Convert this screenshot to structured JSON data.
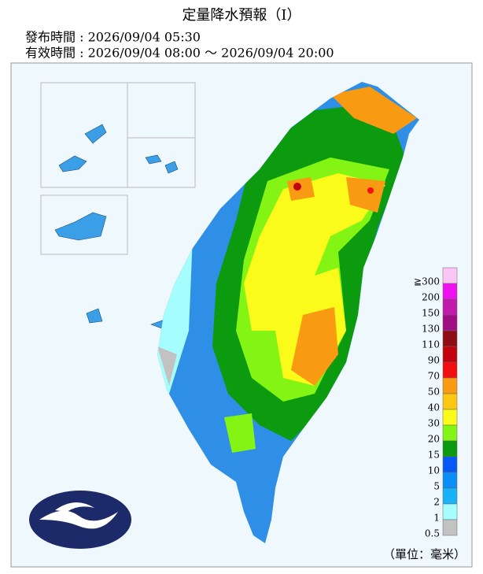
{
  "header": {
    "title": "定量降水預報（I）",
    "issued": "發布時間 : 2026/09/04 05:30",
    "valid": "有效時間 : 2026/09/04 08:00 ～ 2026/09/04 20:00"
  },
  "legend": {
    "unit": "（單位：毫米）",
    "items": [
      {
        "label": "≧300",
        "color": "#fbc6f5"
      },
      {
        "label": "200",
        "color": "#ee12ee"
      },
      {
        "label": "150",
        "color": "#c11aac"
      },
      {
        "label": "130",
        "color": "#a10e84"
      },
      {
        "label": "110",
        "color": "#8f0c14"
      },
      {
        "label": "90",
        "color": "#c4040c"
      },
      {
        "label": "70",
        "color": "#f20f0f"
      },
      {
        "label": "50",
        "color": "#f99a13"
      },
      {
        "label": "40",
        "color": "#fcc712"
      },
      {
        "label": "30",
        "color": "#fafa1b"
      },
      {
        "label": "20",
        "color": "#84f414"
      },
      {
        "label": "15",
        "color": "#0c9a0e"
      },
      {
        "label": "10",
        "color": "#0659f4"
      },
      {
        "label": "5",
        "color": "#0b8ff7"
      },
      {
        "label": "2",
        "color": "#19b2f6"
      },
      {
        "label": "1",
        "color": "#a5fdfd"
      },
      {
        "label": "0.5",
        "color": "#c2c2c2"
      }
    ]
  }
}
